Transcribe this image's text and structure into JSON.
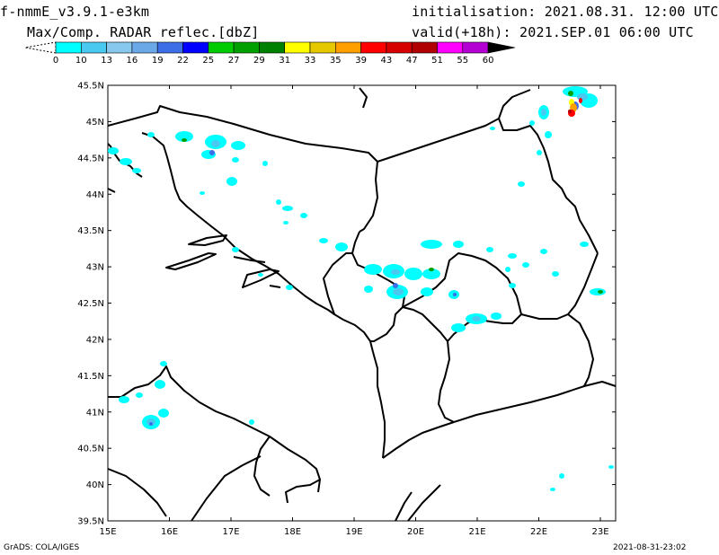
{
  "header": {
    "model": "f-nmmE_v3.9.1-e3km",
    "field": "Max/Comp. RADAR reflec.[dbZ]",
    "init": "initialisation: 2021.08.31. 12:00 UTC",
    "valid": "valid(+18h): 2021.SEP.01 06:00 UTC"
  },
  "colorbar": {
    "labels": [
      "0",
      "10",
      "13",
      "16",
      "19",
      "22",
      "25",
      "27",
      "29",
      "31",
      "33",
      "35",
      "39",
      "43",
      "47",
      "51",
      "55",
      "60"
    ],
    "colors": [
      "#00ffff",
      "#49c8f0",
      "#86c8ee",
      "#6aa8e8",
      "#3c6ee8",
      "#0000ff",
      "#00cc00",
      "#00a000",
      "#008000",
      "#ffff00",
      "#e6c800",
      "#ffa000",
      "#ff0000",
      "#d70000",
      "#b00000",
      "#ff00ff",
      "#b400d2",
      "#000000"
    ]
  },
  "map": {
    "lat_labels": [
      "45.5N",
      "45N",
      "44.5N",
      "44N",
      "43.5N",
      "43N",
      "42.5N",
      "42N",
      "41.5N",
      "41N",
      "40.5N",
      "40N",
      "39.5N"
    ],
    "lon_labels": [
      "15E",
      "16E",
      "17E",
      "18E",
      "19E",
      "20E",
      "21E",
      "22E",
      "23E"
    ]
  },
  "footer": {
    "left": "GrADS: COLA/IGES",
    "right": "2021-08-31-23:02"
  }
}
